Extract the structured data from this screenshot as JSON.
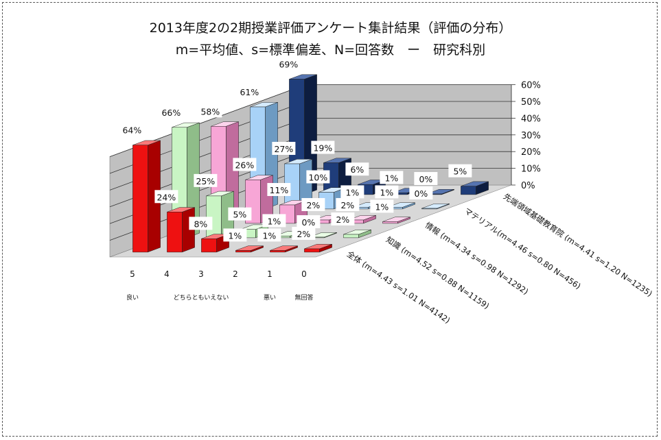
{
  "chart_data": {
    "type": "bar",
    "title": "2013年度2の2期授業評価アンケート集計結果（評価の分布）",
    "subtitle": "m=平均値、s=標準偏差、N=回答数　ー　研究科別",
    "categories": [
      "5",
      "4",
      "3",
      "2",
      "1",
      "0"
    ],
    "category_notes": {
      "5": "良い",
      "3": "どちらともいえない",
      "1": "悪い",
      "0": "無回答"
    },
    "zlim": [
      0,
      60
    ],
    "z_ticks": [
      "0%",
      "10%",
      "20%",
      "30%",
      "40%",
      "50%",
      "60%"
    ],
    "grid": true,
    "series": [
      {
        "name": "全体 (m=4.43 s=1.01 N=4142)",
        "values": [
          64,
          24,
          8,
          1,
          1,
          2
        ],
        "labels": [
          "64%",
          "24%",
          "8%",
          "1%",
          "1%",
          "2%"
        ]
      },
      {
        "name": "知識 (m=4.52 s=0.88 N=1159)",
        "values": [
          66,
          25,
          5,
          1,
          0,
          2
        ],
        "labels": [
          "66%",
          "25%",
          "5%",
          "1%",
          "0%",
          "2%"
        ]
      },
      {
        "name": "情報 (m=4.34 s=0.98 N=1292)",
        "values": [
          58,
          26,
          11,
          2,
          2,
          1
        ],
        "labels": [
          "58%",
          "26%",
          "11%",
          "2%",
          "2%",
          "1%"
        ]
      },
      {
        "name": "マテリアル(m=4.46 s=0.80 N=456)",
        "values": [
          61,
          27,
          10,
          1,
          1,
          0
        ],
        "labels": [
          "61%",
          "27%",
          "10%",
          "1%",
          "1%",
          "0%"
        ]
      },
      {
        "name": "先端領域基礎教育院 (m=4.41 s=1.20 N=1235)",
        "values": [
          69,
          19,
          6,
          1,
          0,
          5
        ],
        "labels": [
          "69%",
          "19%",
          "6%",
          "1%",
          "0%",
          "5%"
        ]
      }
    ],
    "colors": {
      "series_front": [
        "#ee1111",
        "#c9f5c4",
        "#f7a6d6",
        "#a8d2f7",
        "#1f3d7a"
      ],
      "series_top": [
        "#f97a7a",
        "#e9fde5",
        "#fcd4ec",
        "#d5ebfd",
        "#5674b0"
      ],
      "series_side": [
        "#a80000",
        "#8fbd89",
        "#c06c9d",
        "#6d9ac2",
        "#0d1d40"
      ],
      "wall": "#c0c0c0",
      "floor": "#d8d8d8",
      "grid": "#333333"
    }
  }
}
